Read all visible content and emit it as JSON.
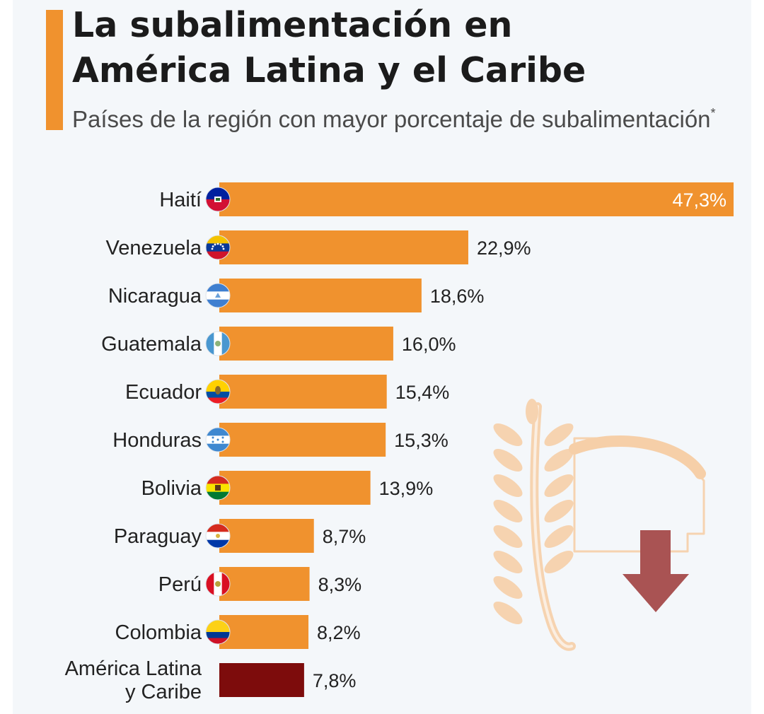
{
  "header": {
    "title_line1": "La subalimentación en",
    "title_line2": "América Latina y el Caribe",
    "subtitle": "Países de la región con mayor porcentaje de subalimentación",
    "subtitle_mark": "*"
  },
  "colors": {
    "accent": "#f0922e",
    "bar": "#f0922e",
    "regional_bar": "#7d0c0c",
    "arrow": "#a95353",
    "wheat": "#f6d3b0"
  },
  "icons": {
    "flags": "flag-icon",
    "illustration": "wheat-down-arrow-icon"
  },
  "chart_data": {
    "type": "bar",
    "orientation": "horizontal",
    "categories": [
      "Haití",
      "Venezuela",
      "Nicaragua",
      "Guatemala",
      "Ecuador",
      "Honduras",
      "Bolivia",
      "Paraguay",
      "Perú",
      "Colombia",
      "América Latina y Caribe"
    ],
    "values": [
      47.3,
      22.9,
      18.6,
      16.0,
      15.4,
      15.3,
      13.9,
      8.7,
      8.3,
      8.2,
      7.8
    ],
    "value_labels": [
      "47,3%",
      "22,9%",
      "18,6%",
      "16,0%",
      "15,4%",
      "15,3%",
      "13,9%",
      "8,7%",
      "8,3%",
      "8,2%",
      "7,8%"
    ],
    "unit": "%",
    "xlim": [
      0,
      47.3
    ],
    "grid": false,
    "legend": "none"
  }
}
